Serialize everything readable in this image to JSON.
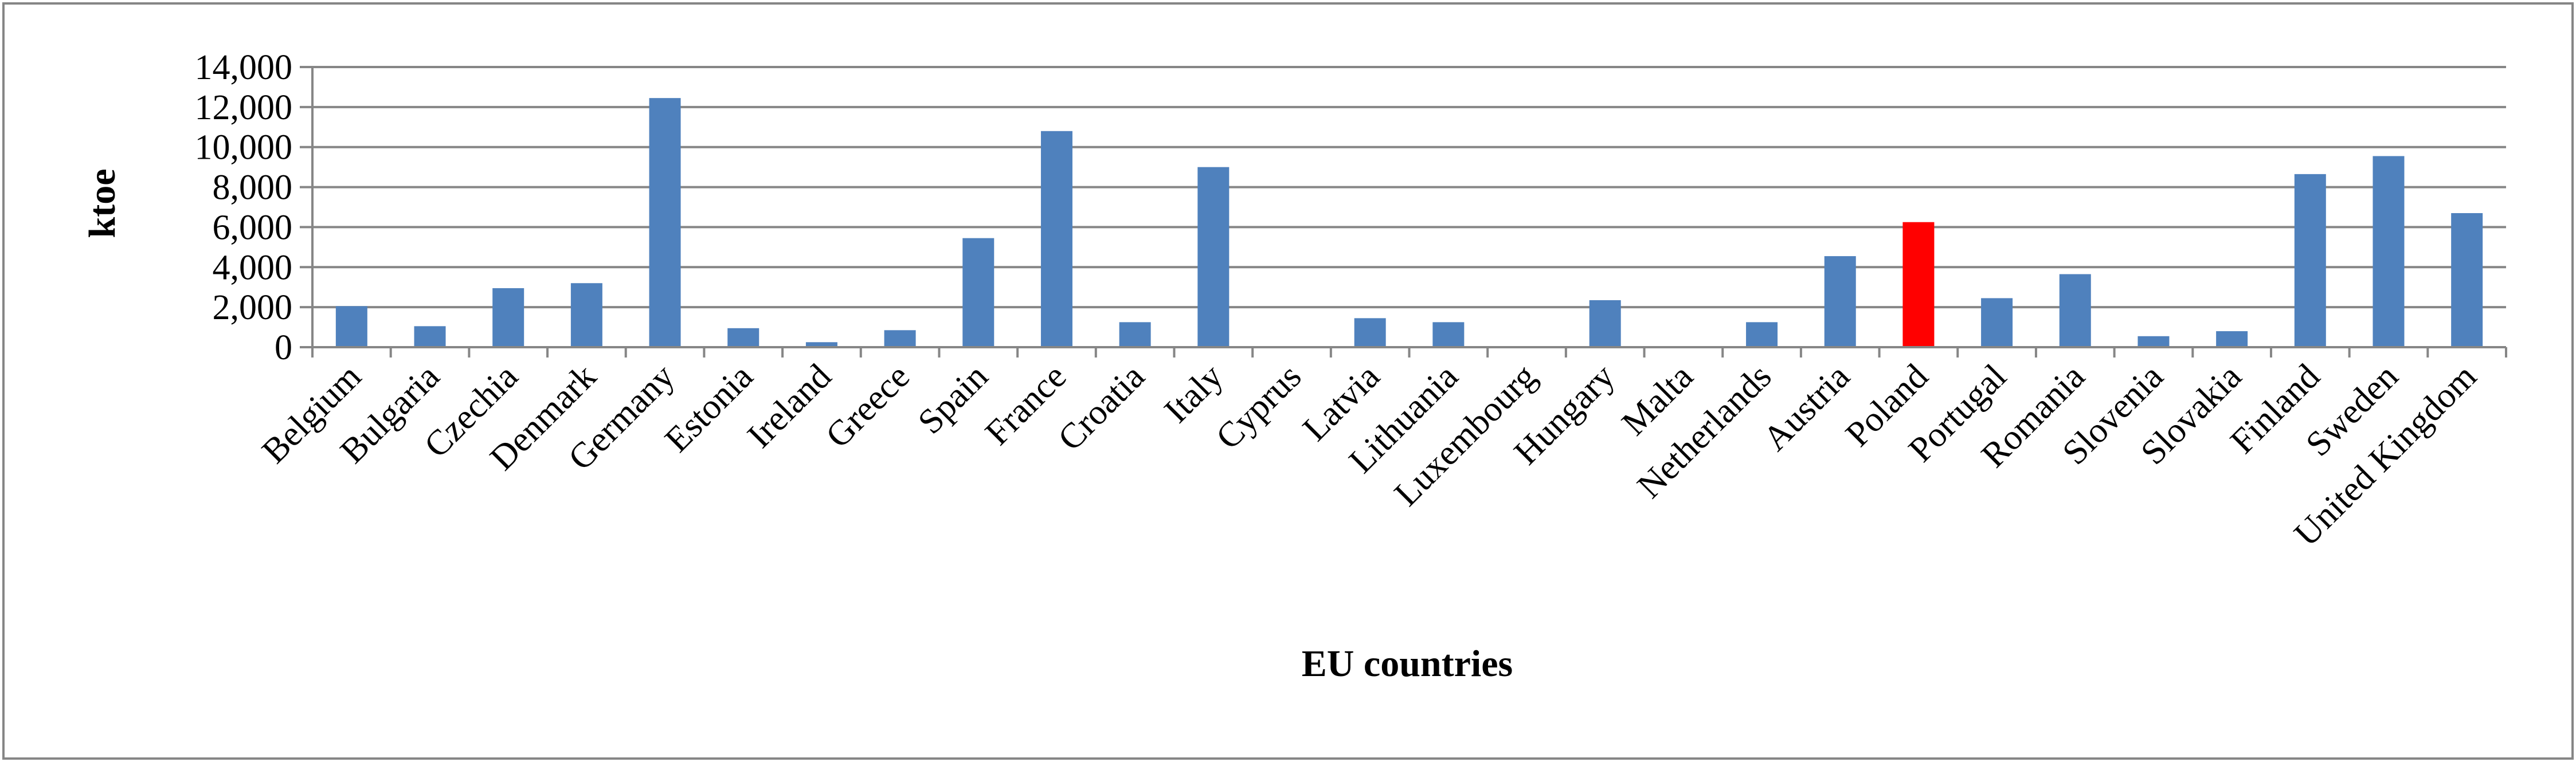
{
  "chart_data": {
    "type": "bar",
    "xlabel": "EU countries",
    "ylabel": "ktoe",
    "ylim": [
      0,
      14000
    ],
    "yticks": [
      "0",
      "2,000",
      "4,000",
      "6,000",
      "8,000",
      "10,000",
      "12,000",
      "14,000"
    ],
    "ytick_values": [
      0,
      2000,
      4000,
      6000,
      8000,
      10000,
      12000,
      14000
    ],
    "grid": true,
    "legend": "none",
    "categories": [
      "Belgium",
      "Bulgaria",
      "Czechia",
      "Denmark",
      "Germany",
      "Estonia",
      "Ireland",
      "Greece",
      "Spain",
      "France",
      "Croatia",
      "Italy",
      "Cyprus",
      "Latvia",
      "Lithuania",
      "Luxembourg",
      "Hungary",
      "Malta",
      "Netherlands",
      "Austria",
      "Poland",
      "Portugal",
      "Romania",
      "Slovenia",
      "Slovakia",
      "Finland",
      "Sweden",
      "United Kingdom"
    ],
    "values": [
      2050,
      1050,
      2950,
      3200,
      12450,
      950,
      250,
      850,
      5450,
      10800,
      1250,
      9000,
      10,
      1450,
      1250,
      20,
      2350,
      0,
      1250,
      4550,
      6250,
      2450,
      3650,
      550,
      800,
      8650,
      9550,
      6700
    ],
    "highlight": "Poland",
    "colors": {
      "bar": "#4f81bd",
      "highlight": "#ff0000",
      "grid": "#868686",
      "axis": "#868686",
      "border": "#868686"
    }
  }
}
